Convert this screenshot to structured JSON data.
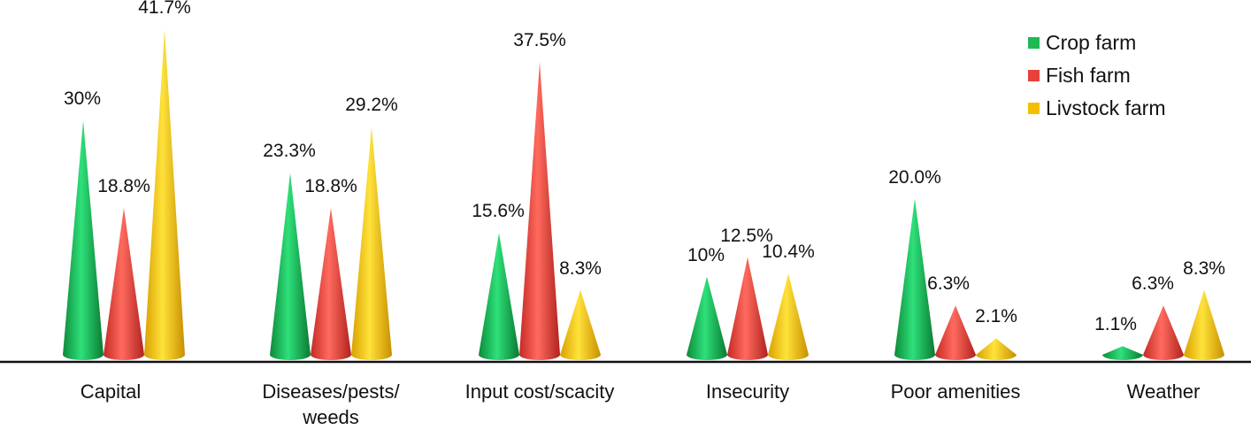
{
  "chart_data": {
    "type": "bar",
    "subtype": "3d-cone",
    "title": "",
    "xlabel": "",
    "ylabel": "",
    "ylim": [
      0,
      45
    ],
    "grid": false,
    "legend_position": "top-right",
    "categories": [
      "Capital",
      "Diseases/pests/ weeds",
      "Input cost/scacity",
      "Insecurity",
      "Poor amenities",
      "Weather"
    ],
    "category_lines": [
      [
        "Capital"
      ],
      [
        "Diseases/pests/",
        "weeds"
      ],
      [
        "Input cost/scacity"
      ],
      [
        "Insecurity"
      ],
      [
        "Poor amenities"
      ],
      [
        "Weather"
      ]
    ],
    "series": [
      {
        "name": "Crop farm",
        "color": "#1DB954",
        "values": [
          30,
          23.3,
          15.6,
          10,
          20.0,
          1.1
        ],
        "labels": [
          "30%",
          "23.3%",
          "15.6%",
          "10%",
          "20.0%",
          "1.1%"
        ]
      },
      {
        "name": "Fish farm",
        "color": "#E8413A",
        "values": [
          18.8,
          18.8,
          37.5,
          12.5,
          6.3,
          6.3
        ],
        "labels": [
          "18.8%",
          "18.8%",
          "37.5%",
          "12.5%",
          "6.3%",
          "6.3%"
        ]
      },
      {
        "name": "Livstock farm",
        "color": "#F5BE00",
        "values": [
          41.7,
          29.2,
          8.3,
          10.4,
          2.1,
          8.3
        ],
        "labels": [
          "41.7%",
          "29.2%",
          "8.3%",
          "10.4%",
          "2.1%",
          "8.3%"
        ]
      }
    ]
  },
  "legend": {
    "items": [
      {
        "label": "Crop farm",
        "color": "#1DB954"
      },
      {
        "label": "Fish farm",
        "color": "#E8413A"
      },
      {
        "label": "Livstock farm",
        "color": "#F5BE00"
      }
    ]
  }
}
